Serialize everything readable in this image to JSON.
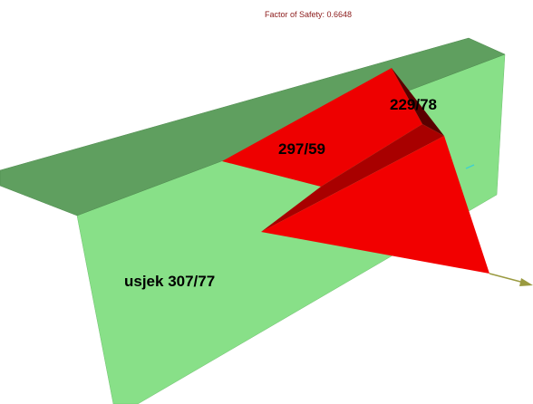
{
  "title": "Factor of Safety: 0.6648",
  "labels": {
    "wedge_top": "229/78",
    "wedge_face": "297/59",
    "slope": "usjek 307/77"
  }
}
